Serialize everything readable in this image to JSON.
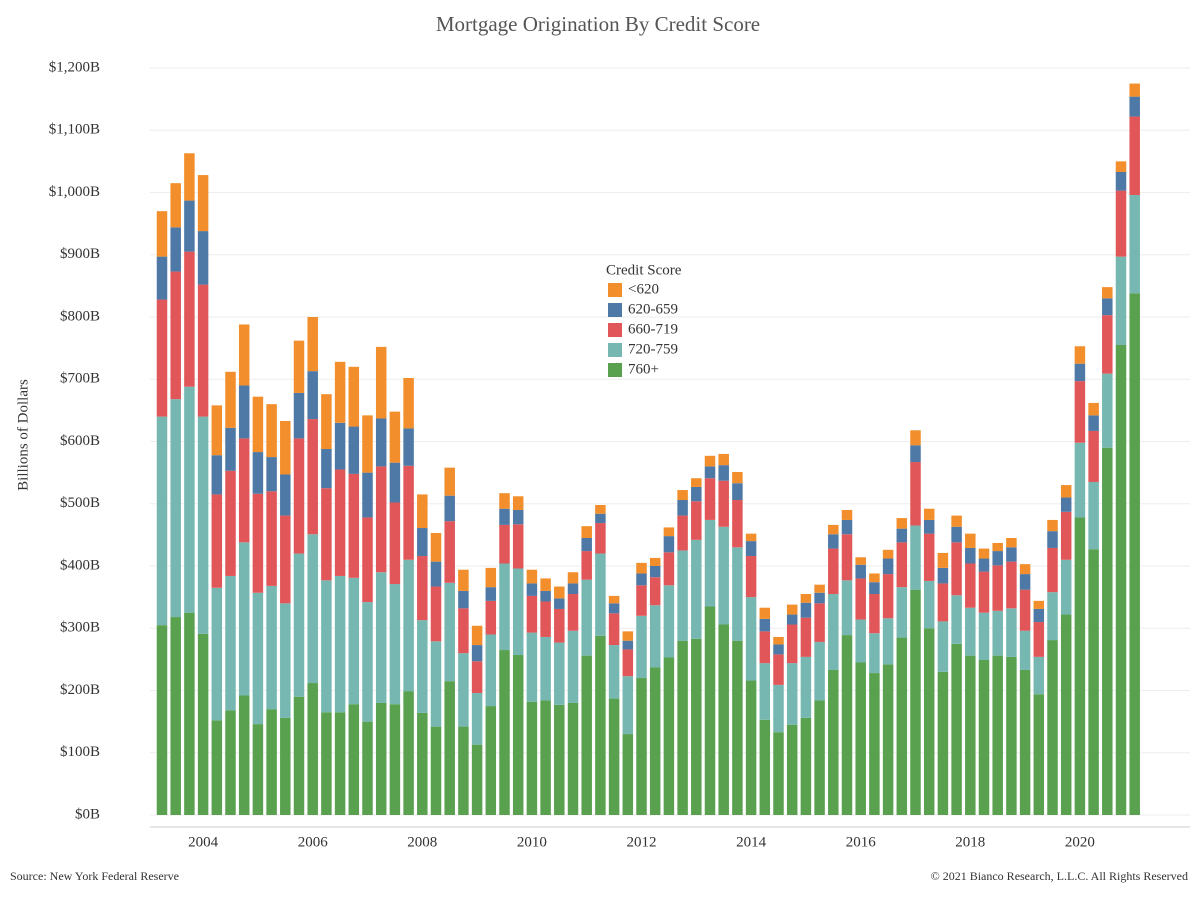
{
  "chart_data": {
    "type": "stacked_bar",
    "title": "Mortgage Origination By Credit Score",
    "y_label": "Billions of Dollars",
    "legend_title": "Credit Score",
    "source": "Source: New York Federal Reserve",
    "copyright": "© 2021 Bianco Research, L.L.C. All Rights Reserved",
    "categories": [
      null,
      null,
      null,
      "2004",
      null,
      null,
      null,
      null,
      null,
      null,
      null,
      "2006",
      null,
      null,
      null,
      null,
      null,
      null,
      null,
      "2008",
      null,
      null,
      null,
      null,
      null,
      null,
      null,
      "2010",
      null,
      null,
      null,
      null,
      null,
      null,
      null,
      "2012",
      null,
      null,
      null,
      null,
      null,
      null,
      null,
      "2014",
      null,
      null,
      null,
      null,
      null,
      null,
      null,
      "2016",
      null,
      null,
      null,
      null,
      null,
      null,
      null,
      "2018",
      null,
      null,
      null,
      null,
      null,
      null,
      null,
      "2020",
      null,
      null,
      null,
      null
    ],
    "ylim": [
      0,
      1200
    ],
    "yticks": [
      {
        "value": 0,
        "label": "$0B"
      },
      {
        "value": 100,
        "label": "$100B"
      },
      {
        "value": 200,
        "label": "$200B"
      },
      {
        "value": 300,
        "label": "$300B"
      },
      {
        "value": 400,
        "label": "$400B"
      },
      {
        "value": 500,
        "label": "$500B"
      },
      {
        "value": 600,
        "label": "$600B"
      },
      {
        "value": 700,
        "label": "$700B"
      },
      {
        "value": 800,
        "label": "$800B"
      },
      {
        "value": 900,
        "label": "$900B"
      },
      {
        "value": 1000,
        "label": "$1,000B"
      },
      {
        "value": 1100,
        "label": "$1,100B"
      },
      {
        "value": 1200,
        "label": "$1,200B"
      }
    ],
    "grid": true,
    "series": [
      {
        "name": "760+",
        "color": "#59a14f",
        "values": [
          305,
          318,
          325,
          291,
          152,
          168,
          192,
          146,
          170,
          156,
          190,
          212,
          165,
          165,
          178,
          150,
          180,
          178,
          199,
          164,
          142,
          215,
          142,
          113,
          175,
          265,
          257,
          182,
          184,
          177,
          180,
          256,
          288,
          187,
          130,
          220,
          237,
          253,
          280,
          283,
          335,
          306,
          280,
          216,
          153,
          133,
          145,
          156,
          184,
          233,
          289,
          245,
          228,
          242,
          285,
          362,
          300,
          230,
          275,
          256,
          249,
          256,
          254,
          233,
          194,
          281,
          322,
          478,
          427,
          590,
          755,
          838
        ]
      },
      {
        "name": "720-759",
        "color": "#76b7b2",
        "values": [
          335,
          350,
          363,
          349,
          213,
          216,
          246,
          211,
          198,
          184,
          230,
          239,
          212,
          219,
          203,
          192,
          210,
          193,
          211,
          149,
          137,
          158,
          118,
          83,
          115,
          139,
          139,
          111,
          102,
          100,
          116,
          122,
          132,
          86,
          93,
          100,
          100,
          116,
          145,
          159,
          139,
          157,
          150,
          134,
          91,
          76,
          99,
          98,
          94,
          122,
          88,
          69,
          64,
          74,
          81,
          103,
          76,
          81,
          78,
          77,
          76,
          72,
          78,
          63,
          60,
          77,
          88,
          120,
          108,
          119,
          142,
          158
        ]
      },
      {
        "name": "660-719",
        "color": "#e15759",
        "values": [
          188,
          205,
          217,
          212,
          150,
          169,
          167,
          159,
          152,
          141,
          185,
          185,
          148,
          171,
          167,
          136,
          170,
          131,
          151,
          103,
          88,
          99,
          72,
          51,
          54,
          62,
          71,
          59,
          57,
          54,
          59,
          46,
          49,
          51,
          43,
          49,
          45,
          53,
          56,
          62,
          67,
          74,
          76,
          66,
          51,
          49,
          62,
          63,
          62,
          73,
          74,
          66,
          63,
          71,
          72,
          102,
          76,
          61,
          85,
          71,
          66,
          73,
          75,
          66,
          56,
          71,
          77,
          99,
          82,
          94,
          106,
          126
        ]
      },
      {
        "name": "620-659",
        "color": "#4e79a7",
        "values": [
          69,
          71,
          82,
          86,
          63,
          69,
          85,
          67,
          55,
          66,
          73,
          77,
          63,
          75,
          76,
          72,
          77,
          64,
          60,
          45,
          40,
          41,
          28,
          26,
          22,
          26,
          23,
          20,
          17,
          17,
          17,
          21,
          15,
          16,
          14,
          19,
          18,
          26,
          25,
          23,
          19,
          25,
          27,
          24,
          20,
          16,
          16,
          24,
          17,
          23,
          23,
          22,
          19,
          25,
          22,
          27,
          22,
          25,
          25,
          25,
          21,
          23,
          23,
          25,
          21,
          27,
          23,
          28,
          25,
          27,
          30,
          32
        ]
      },
      {
        "name": "<620",
        "color": "#f28e2b",
        "values": [
          73,
          71,
          76,
          90,
          80,
          90,
          98,
          89,
          85,
          86,
          84,
          87,
          88,
          98,
          96,
          92,
          115,
          82,
          81,
          54,
          46,
          45,
          34,
          31,
          31,
          25,
          22,
          22,
          20,
          19,
          18,
          19,
          14,
          12,
          15,
          17,
          13,
          14,
          16,
          14,
          17,
          18,
          18,
          12,
          18,
          12,
          16,
          14,
          13,
          15,
          16,
          12,
          14,
          14,
          17,
          24,
          18,
          24,
          18,
          23,
          16,
          13,
          15,
          16,
          13,
          18,
          20,
          28,
          20,
          18,
          17,
          21
        ]
      }
    ]
  }
}
